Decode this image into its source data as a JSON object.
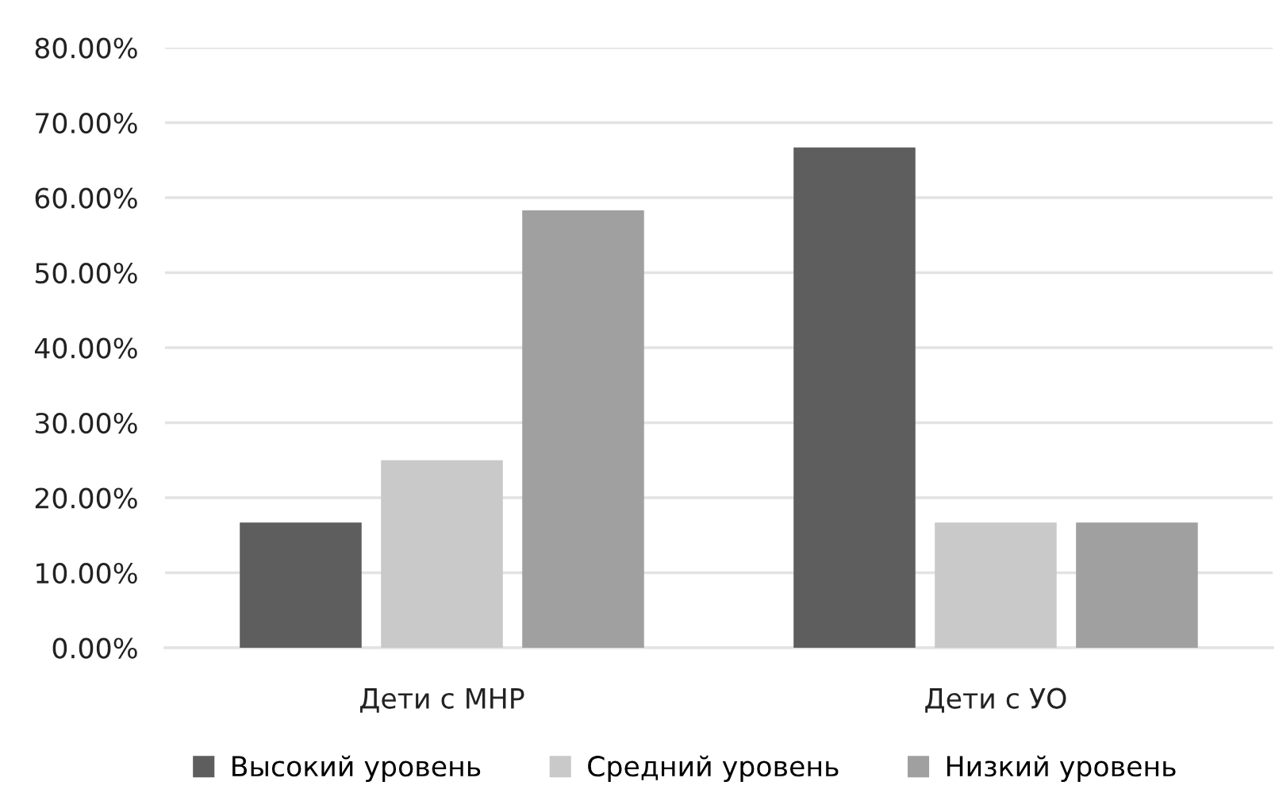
{
  "chart_data": {
    "type": "bar",
    "categories": [
      "Дети с МНР",
      "Дети с УО"
    ],
    "series": [
      {
        "name": "Высокий уровень",
        "color": "#5f5e5f",
        "values": [
          16.7,
          66.7
        ]
      },
      {
        "name": "Средний уровень",
        "color": "#c9c9c9",
        "values": [
          25.0,
          16.7
        ]
      },
      {
        "name": "Низкий уровень",
        "color": "#a0a0a1",
        "values": [
          58.3,
          16.7
        ]
      }
    ],
    "ylim": [
      0,
      80
    ],
    "yticks": [
      {
        "value": 0,
        "label": "0.00%"
      },
      {
        "value": 10,
        "label": "10.00%"
      },
      {
        "value": 20,
        "label": "20.00%"
      },
      {
        "value": 30,
        "label": "30.00%"
      },
      {
        "value": 40,
        "label": "40.00%"
      },
      {
        "value": 50,
        "label": "50.00%"
      },
      {
        "value": 60,
        "label": "60.00%"
      },
      {
        "value": 70,
        "label": "70.00%"
      },
      {
        "value": 80,
        "label": "80.00%"
      }
    ],
    "grid": "y",
    "legend": "bottom"
  }
}
